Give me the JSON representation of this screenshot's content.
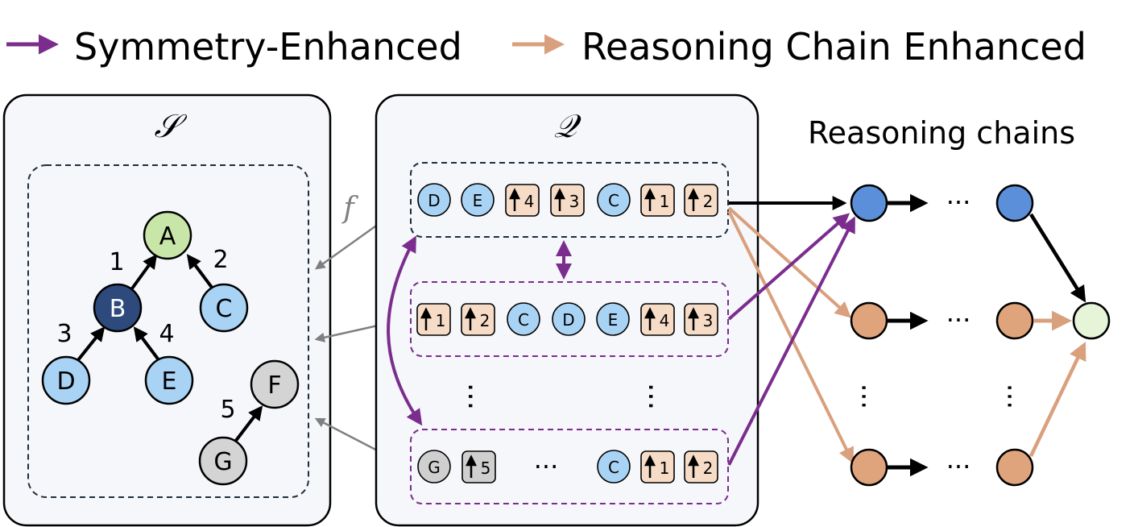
{
  "legend": {
    "items": [
      {
        "label": "Symmetry-Enhanced",
        "color": "#7b2d8e"
      },
      {
        "label": "Reasoning Chain Enhanced",
        "color": "#d9a07e"
      }
    ]
  },
  "panels": {
    "s_symbol": "𝒮",
    "q_symbol": "𝒬",
    "mapping_symbol": "f",
    "chains_title": "Reasoning chains"
  },
  "tree": {
    "nodes": [
      {
        "id": "A",
        "label": "A",
        "color": "#c8e6a8"
      },
      {
        "id": "B",
        "label": "B",
        "color": "#2e4a7d"
      },
      {
        "id": "C",
        "label": "C",
        "color": "#a9d3f5"
      },
      {
        "id": "D",
        "label": "D",
        "color": "#a9d3f5"
      },
      {
        "id": "E",
        "label": "E",
        "color": "#a9d3f5"
      },
      {
        "id": "F",
        "label": "F",
        "color": "#d4d4d4"
      },
      {
        "id": "G",
        "label": "G",
        "color": "#d4d4d4"
      }
    ],
    "edges": [
      {
        "from": "B",
        "to": "A",
        "label": "1"
      },
      {
        "from": "C",
        "to": "A",
        "label": "2"
      },
      {
        "from": "D",
        "to": "B",
        "label": "3"
      },
      {
        "from": "E",
        "to": "B",
        "label": "4"
      },
      {
        "from": "G",
        "to": "F",
        "label": "5"
      }
    ]
  },
  "sequences": {
    "row1": [
      "D",
      "E",
      "4",
      "3",
      "C",
      "1",
      "2"
    ],
    "row2": [
      "1",
      "2",
      "C",
      "D",
      "E",
      "4",
      "3"
    ],
    "row3": [
      "G",
      "5",
      "C",
      "1",
      "2"
    ]
  },
  "chain_colors": {
    "blue": "#5b8fd9",
    "orange": "#e0a47c",
    "green": "#e6f5d8"
  },
  "ellipsis": "···"
}
